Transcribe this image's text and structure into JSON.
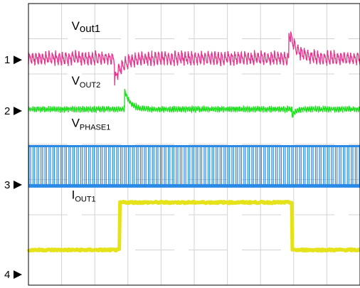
{
  "chart_data": {
    "type": "line",
    "title": "",
    "xlabel": "",
    "ylabel": "",
    "grid": true,
    "grid_divisions": {
      "x": 10,
      "y": 8
    },
    "x_range": [
      0,
      10
    ],
    "y_range": [
      0,
      8
    ],
    "channel_markers": [
      {
        "label": "1",
        "y_div": 6.4
      },
      {
        "label": "2",
        "y_div": 4.95
      },
      {
        "label": "3",
        "y_div": 2.85
      },
      {
        "label": "4",
        "y_div": 0.3
      }
    ],
    "series": [
      {
        "name_main": "V",
        "name_sub": "out1",
        "sub_style": "normal",
        "color": "#e8338a",
        "kind": "ripple",
        "baseline_div": 6.45,
        "ripple_div": 0.35,
        "period_div": 0.1,
        "label_x_div": 1.3,
        "label_y_div": 7.25,
        "events": [
          {
            "x_div": 2.6,
            "delta_div": -0.6,
            "recovery_div": 0.7
          },
          {
            "x_div": 7.85,
            "delta_div": 0.75,
            "recovery_div": 0.7
          }
        ]
      },
      {
        "name_main": "V",
        "name_sub": "OUT2",
        "sub_style": "small",
        "color": "#19e019",
        "kind": "ripple",
        "baseline_div": 5.0,
        "ripple_div": 0.15,
        "period_div": 0.06,
        "label_x_div": 1.3,
        "label_y_div": 5.7,
        "events": [
          {
            "x_div": 2.9,
            "delta_div": 0.55,
            "recovery_div": 0.5
          },
          {
            "x_div": 7.95,
            "delta_div": -0.2,
            "recovery_div": 0.3
          }
        ]
      },
      {
        "name_main": "V",
        "name_sub": "PHASE1",
        "sub_style": "small",
        "color": "#2a8ae6",
        "kind": "pwm",
        "low_div": 2.82,
        "high_div": 3.95,
        "period_div": 0.12,
        "label_x_div": 1.3,
        "label_y_div": 4.5
      },
      {
        "name_main": "I",
        "name_sub": "OUT1",
        "sub_style": "small",
        "color": "#e6e21a",
        "kind": "step",
        "low_div": 1.0,
        "high_div": 2.35,
        "step_up_x_div": 2.75,
        "step_down_x_div": 7.95,
        "label_x_div": 1.3,
        "label_y_div": 2.45
      }
    ]
  }
}
